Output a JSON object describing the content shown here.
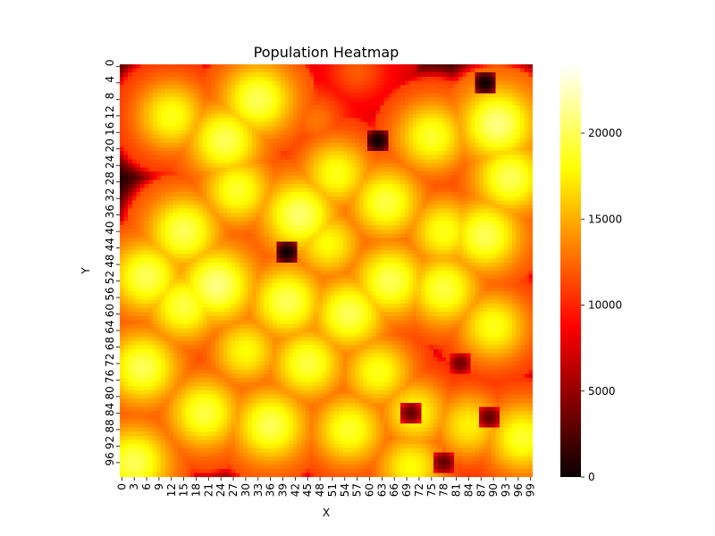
{
  "chart_data": {
    "type": "heatmap",
    "title": "Population Heatmap",
    "xlabel": "X",
    "ylabel": "Y",
    "x_tick_labels": [
      "0",
      "3",
      "6",
      "9",
      "12",
      "15",
      "18",
      "21",
      "24",
      "27",
      "30",
      "33",
      "36",
      "39",
      "42",
      "45",
      "48",
      "51",
      "54",
      "57",
      "60",
      "63",
      "66",
      "69",
      "72",
      "75",
      "78",
      "81",
      "84",
      "87",
      "90",
      "93",
      "96",
      "99"
    ],
    "y_tick_labels": [
      "0",
      "4",
      "8",
      "12",
      "16",
      "20",
      "24",
      "28",
      "32",
      "36",
      "40",
      "44",
      "48",
      "52",
      "56",
      "60",
      "64",
      "68",
      "72",
      "76",
      "80",
      "84",
      "88",
      "92",
      "96"
    ],
    "grid_size": [
      100,
      100
    ],
    "colormap": "hot",
    "value_range": [
      0,
      24000
    ],
    "colorbar_ticks": [
      0,
      5000,
      10000,
      15000,
      20000
    ],
    "colorbar_tick_labels": [
      "0",
      "5000",
      "10000",
      "15000",
      "20000"
    ],
    "blobs": [
      {
        "x": 12,
        "y": 12,
        "value": 18500
      },
      {
        "x": 25,
        "y": 18,
        "value": 20000
      },
      {
        "x": 38,
        "y": 22,
        "value": 11000
      },
      {
        "x": 47,
        "y": 13,
        "value": 13000
      },
      {
        "x": 57,
        "y": 1,
        "value": 12000
      },
      {
        "x": 75,
        "y": 17,
        "value": 19000
      },
      {
        "x": 91,
        "y": 14,
        "value": 21000
      },
      {
        "x": 94,
        "y": 27,
        "value": 20000
      },
      {
        "x": 64,
        "y": 33,
        "value": 19500
      },
      {
        "x": 43,
        "y": 36,
        "value": 20500
      },
      {
        "x": 15,
        "y": 40,
        "value": 20000
      },
      {
        "x": 88,
        "y": 41,
        "value": 20000
      },
      {
        "x": 6,
        "y": 51,
        "value": 20000
      },
      {
        "x": 23,
        "y": 53,
        "value": 21000
      },
      {
        "x": 65,
        "y": 52,
        "value": 20000
      },
      {
        "x": 78,
        "y": 54,
        "value": 19500
      },
      {
        "x": 15,
        "y": 58,
        "value": 19500
      },
      {
        "x": 40,
        "y": 57,
        "value": 20000
      },
      {
        "x": 55,
        "y": 60,
        "value": 20000
      },
      {
        "x": 33,
        "y": 8,
        "value": 20000
      },
      {
        "x": 78,
        "y": 40,
        "value": 18500
      },
      {
        "x": 5,
        "y": 73,
        "value": 20000
      },
      {
        "x": 45,
        "y": 72,
        "value": 19500
      },
      {
        "x": 62,
        "y": 74,
        "value": 18500
      },
      {
        "x": 20,
        "y": 84,
        "value": 19500
      },
      {
        "x": 36,
        "y": 87,
        "value": 20000
      },
      {
        "x": 55,
        "y": 88,
        "value": 19000
      },
      {
        "x": 97,
        "y": 90,
        "value": 19000
      },
      {
        "x": 50,
        "y": 43,
        "value": 18000
      },
      {
        "x": 90,
        "y": 63,
        "value": 18500
      },
      {
        "x": 30,
        "y": 69,
        "value": 18000
      },
      {
        "x": 71,
        "y": 84,
        "value": 18000
      },
      {
        "x": 84,
        "y": 87,
        "value": 17500
      },
      {
        "x": 70,
        "y": 97,
        "value": 18000
      },
      {
        "x": 3,
        "y": 96,
        "value": 20000
      },
      {
        "x": 28,
        "y": 30,
        "value": 19000
      },
      {
        "x": 52,
        "y": 26,
        "value": 18500
      }
    ],
    "dark_spots": [
      {
        "x": 82,
        "y": 72,
        "value": 3500
      },
      {
        "x": 70,
        "y": 84,
        "value": 3000
      },
      {
        "x": 89,
        "y": 85,
        "value": 3000
      },
      {
        "x": 78,
        "y": 96,
        "value": 3000
      },
      {
        "x": 88,
        "y": 4,
        "value": 0
      },
      {
        "x": 62,
        "y": 18,
        "value": 0
      },
      {
        "x": 40,
        "y": 45,
        "value": 0
      }
    ]
  }
}
